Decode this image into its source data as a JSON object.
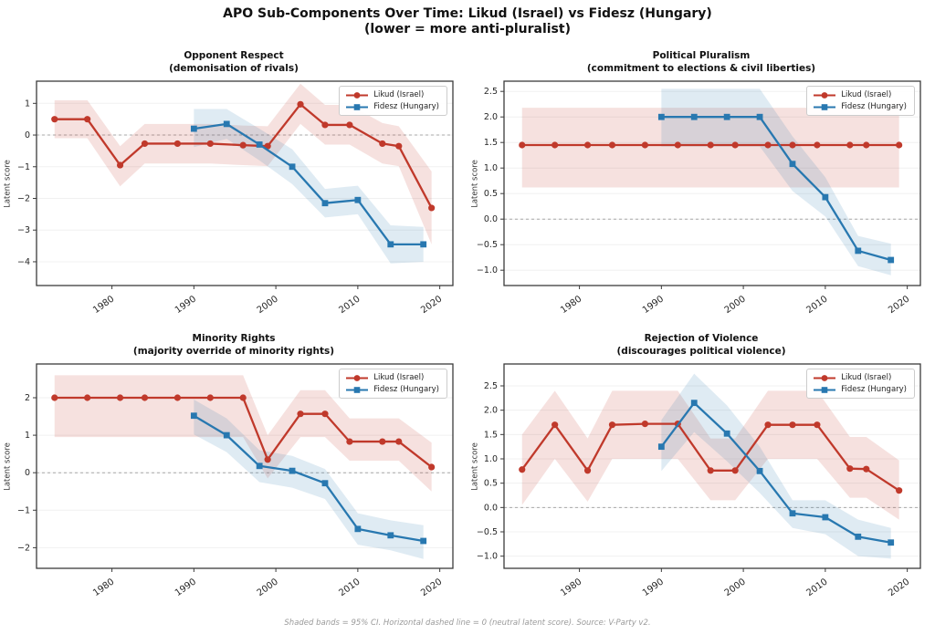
{
  "header": {
    "title_line1": "APO Sub-Components Over Time: Likud (Israel) vs Fidesz (Hungary)",
    "title_line2": "(lower = more anti-pluralist)"
  },
  "footer": {
    "note": "Shaded bands = 95% CI. Horizontal dashed line = 0 (neutral latent score). Source: V-Party v2."
  },
  "legend": {
    "likud": "Likud (Israel)",
    "fidesz": "Fidesz (Hungary)"
  },
  "colors": {
    "likud": "#c0392b",
    "fidesz": "#2878b0",
    "zero_line": "#a8a8a8",
    "gridline": "#f0f0f0",
    "axis": "#3b3b3b"
  },
  "chart_data": [
    {
      "type": "line",
      "title": "Opponent Respect",
      "subtitle": "(demonisation of rivals)",
      "ylabel": "Latent score",
      "xlim": [
        1970.8,
        2021.6
      ],
      "ylim": [
        -4.75,
        1.7
      ],
      "xticks": [
        1980,
        1990,
        2000,
        2010,
        2020
      ],
      "yticks": [
        {
          "v": 1,
          "label": "1"
        },
        {
          "v": 0,
          "label": "0"
        },
        {
          "v": -1,
          "label": "−1"
        },
        {
          "v": -2,
          "label": "−2"
        },
        {
          "v": -3,
          "label": "−3"
        },
        {
          "v": -4,
          "label": "−4"
        }
      ],
      "series": [
        {
          "key": "likud",
          "name": "Likud (Israel)",
          "color": "#c0392b",
          "marker": "circle",
          "x": [
            1973,
            1977,
            1981,
            1984,
            1988,
            1992,
            1996,
            1999,
            2003,
            2006,
            2009,
            2013,
            2015,
            2019
          ],
          "y": [
            0.5,
            0.5,
            -0.95,
            -0.27,
            -0.27,
            -0.27,
            -0.32,
            -0.35,
            0.97,
            0.32,
            0.32,
            -0.27,
            -0.35,
            -2.3
          ],
          "ci_upper": [
            1.1,
            1.1,
            -0.35,
            0.35,
            0.35,
            0.35,
            0.3,
            0.28,
            1.62,
            0.95,
            0.95,
            0.38,
            0.28,
            -1.15
          ],
          "ci_lower": [
            -0.1,
            -0.1,
            -1.62,
            -0.9,
            -0.9,
            -0.9,
            -0.95,
            -0.98,
            0.35,
            -0.3,
            -0.3,
            -0.9,
            -0.98,
            -3.45
          ]
        },
        {
          "key": "fidesz",
          "name": "Fidesz (Hungary)",
          "color": "#2878b0",
          "marker": "square",
          "x": [
            1990,
            1994,
            1998,
            2002,
            2006,
            2010,
            2014,
            2018
          ],
          "y": [
            0.2,
            0.35,
            -0.3,
            -1.0,
            -2.15,
            -2.05,
            -3.45,
            -3.45
          ],
          "ci_upper": [
            0.82,
            0.82,
            0.2,
            -0.45,
            -1.7,
            -1.6,
            -2.85,
            -2.9
          ],
          "ci_lower": [
            -0.38,
            -0.12,
            -0.8,
            -1.55,
            -2.6,
            -2.5,
            -4.05,
            -4.0
          ]
        }
      ]
    },
    {
      "type": "line",
      "title": "Political Pluralism",
      "subtitle": "(commitment to elections & civil liberties)",
      "ylabel": "Latent score",
      "xlim": [
        1970.8,
        2021.6
      ],
      "ylim": [
        -1.3,
        2.7
      ],
      "xticks": [
        1980,
        1990,
        2000,
        2010,
        2020
      ],
      "yticks": [
        {
          "v": 2.5,
          "label": "2.5"
        },
        {
          "v": 2.0,
          "label": "2.0"
        },
        {
          "v": 1.5,
          "label": "1.5"
        },
        {
          "v": 1.0,
          "label": "1.0"
        },
        {
          "v": 0.5,
          "label": "0.5"
        },
        {
          "v": 0.0,
          "label": "0.0"
        },
        {
          "v": -0.5,
          "label": "−0.5"
        },
        {
          "v": -1.0,
          "label": "−1.0"
        }
      ],
      "series": [
        {
          "key": "likud",
          "name": "Likud (Israel)",
          "color": "#c0392b",
          "marker": "circle",
          "x": [
            1973,
            1977,
            1981,
            1984,
            1988,
            1992,
            1996,
            1999,
            2003,
            2006,
            2009,
            2013,
            2015,
            2019
          ],
          "y": [
            1.45,
            1.45,
            1.45,
            1.45,
            1.45,
            1.45,
            1.45,
            1.45,
            1.45,
            1.45,
            1.45,
            1.45,
            1.45,
            1.45
          ],
          "ci_upper": [
            2.18,
            2.18,
            2.18,
            2.18,
            2.18,
            2.18,
            2.18,
            2.18,
            2.18,
            2.18,
            2.18,
            2.18,
            2.18,
            2.18
          ],
          "ci_lower": [
            0.62,
            0.62,
            0.62,
            0.62,
            0.62,
            0.62,
            0.62,
            0.62,
            0.62,
            0.62,
            0.62,
            0.62,
            0.62,
            0.62
          ]
        },
        {
          "key": "fidesz",
          "name": "Fidesz (Hungary)",
          "color": "#2878b0",
          "marker": "square",
          "x": [
            1990,
            1994,
            1998,
            2002,
            2006,
            2010,
            2014,
            2018
          ],
          "y": [
            2.0,
            2.0,
            2.0,
            2.0,
            1.08,
            0.43,
            -0.62,
            -0.8
          ],
          "ci_upper": [
            2.55,
            2.55,
            2.55,
            2.55,
            1.62,
            0.82,
            -0.33,
            -0.48
          ],
          "ci_lower": [
            1.42,
            1.42,
            1.42,
            1.42,
            0.55,
            0.05,
            -0.92,
            -1.1
          ]
        }
      ]
    },
    {
      "type": "line",
      "title": "Minority Rights",
      "subtitle": "(majority override of minority rights)",
      "ylabel": "Latent score",
      "xlim": [
        1970.8,
        2021.6
      ],
      "ylim": [
        -2.55,
        2.9
      ],
      "xticks": [
        1980,
        1990,
        2000,
        2010,
        2020
      ],
      "yticks": [
        {
          "v": 2,
          "label": "2"
        },
        {
          "v": 1,
          "label": "1"
        },
        {
          "v": 0,
          "label": "0"
        },
        {
          "v": -1,
          "label": "−1"
        },
        {
          "v": -2,
          "label": "−2"
        }
      ],
      "series": [
        {
          "key": "likud",
          "name": "Likud (Israel)",
          "color": "#c0392b",
          "marker": "circle",
          "x": [
            1973,
            1977,
            1981,
            1984,
            1988,
            1992,
            1996,
            1999,
            2003,
            2006,
            2009,
            2013,
            2015,
            2019
          ],
          "y": [
            2.0,
            2.0,
            2.0,
            2.0,
            2.0,
            2.0,
            2.0,
            0.35,
            1.57,
            1.57,
            0.83,
            0.83,
            0.83,
            0.15
          ],
          "ci_upper": [
            2.6,
            2.6,
            2.6,
            2.6,
            2.6,
            2.6,
            2.6,
            1.0,
            2.2,
            2.2,
            1.45,
            1.45,
            1.45,
            0.8
          ],
          "ci_lower": [
            0.95,
            0.95,
            0.95,
            0.95,
            0.95,
            0.95,
            0.95,
            -0.15,
            0.95,
            0.95,
            0.32,
            0.32,
            0.32,
            -0.5
          ]
        },
        {
          "key": "fidesz",
          "name": "Fidesz (Hungary)",
          "color": "#2878b0",
          "marker": "square",
          "x": [
            1990,
            1994,
            1998,
            2002,
            2006,
            2010,
            2014,
            2018
          ],
          "y": [
            1.52,
            1.0,
            0.18,
            0.05,
            -0.28,
            -1.5,
            -1.67,
            -1.82
          ],
          "ci_upper": [
            1.95,
            1.45,
            0.6,
            0.45,
            0.1,
            -1.08,
            -1.27,
            -1.4
          ],
          "ci_lower": [
            1.02,
            0.55,
            -0.25,
            -0.4,
            -0.7,
            -1.92,
            -2.07,
            -2.3
          ]
        }
      ]
    },
    {
      "type": "line",
      "title": "Rejection of Violence",
      "subtitle": "(discourages political violence)",
      "ylabel": "Latent score",
      "xlim": [
        1970.8,
        2021.6
      ],
      "ylim": [
        -1.25,
        2.95
      ],
      "xticks": [
        1980,
        1990,
        2000,
        2010,
        2020
      ],
      "yticks": [
        {
          "v": 2.5,
          "label": "2.5"
        },
        {
          "v": 2.0,
          "label": "2.0"
        },
        {
          "v": 1.5,
          "label": "1.5"
        },
        {
          "v": 1.0,
          "label": "1.0"
        },
        {
          "v": 0.5,
          "label": "0.5"
        },
        {
          "v": 0.0,
          "label": "0.0"
        },
        {
          "v": -0.5,
          "label": "−0.5"
        },
        {
          "v": -1.0,
          "label": "−1.0"
        }
      ],
      "series": [
        {
          "key": "likud",
          "name": "Likud (Israel)",
          "color": "#c0392b",
          "marker": "circle",
          "x": [
            1973,
            1977,
            1981,
            1984,
            1988,
            1992,
            1996,
            1999,
            2003,
            2006,
            2009,
            2013,
            2015,
            2019
          ],
          "y": [
            0.78,
            1.7,
            0.76,
            1.7,
            1.72,
            1.72,
            0.76,
            0.76,
            1.7,
            1.7,
            1.7,
            0.8,
            0.79,
            0.35
          ],
          "ci_upper": [
            1.5,
            2.4,
            1.42,
            2.4,
            2.4,
            2.4,
            1.42,
            1.42,
            2.4,
            2.4,
            2.4,
            1.45,
            1.45,
            0.97
          ],
          "ci_lower": [
            0.05,
            1.0,
            0.12,
            1.0,
            1.0,
            1.0,
            0.15,
            0.15,
            1.0,
            1.0,
            1.0,
            0.2,
            0.2,
            -0.25
          ]
        },
        {
          "key": "fidesz",
          "name": "Fidesz (Hungary)",
          "color": "#2878b0",
          "marker": "square",
          "x": [
            1990,
            1994,
            1998,
            2002,
            2006,
            2010,
            2014,
            2018
          ],
          "y": [
            1.25,
            2.15,
            1.52,
            0.75,
            -0.12,
            -0.2,
            -0.6,
            -0.72
          ],
          "ci_upper": [
            1.8,
            2.75,
            2.1,
            1.25,
            0.15,
            0.15,
            -0.25,
            -0.42
          ],
          "ci_lower": [
            0.75,
            1.55,
            0.95,
            0.3,
            -0.42,
            -0.55,
            -1.0,
            -1.05
          ]
        }
      ]
    }
  ]
}
